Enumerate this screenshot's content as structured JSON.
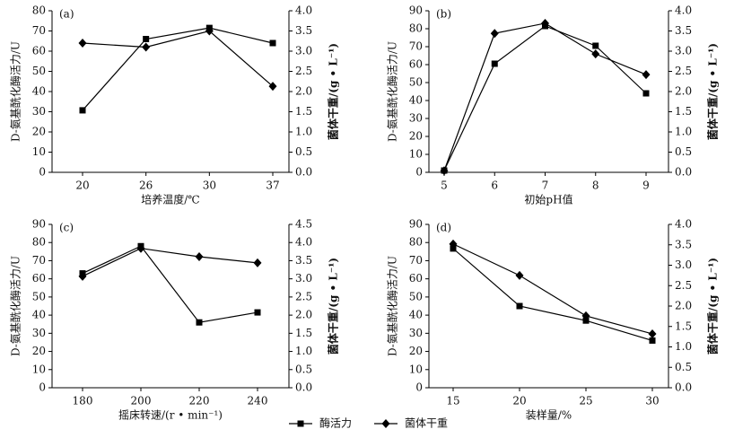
{
  "chart_data": [
    {
      "type": "line",
      "panel_label": "(a)",
      "x_label": "培养温度/℃",
      "y_label": "D-氨基酰化酶活力/U",
      "y2_label": "菌体干重/(g • L⁻¹)",
      "categories": [
        "20",
        "26",
        "30",
        "37"
      ],
      "series": [
        {
          "name": "酶活力",
          "color": "#000000",
          "marker": "square",
          "values": [
            30.7,
            66,
            71.5,
            64
          ]
        },
        {
          "name": "菌体干重",
          "color": "#000000",
          "marker": "diamond",
          "axis": "y2",
          "values": [
            3.2,
            3.1,
            3.5,
            2.13
          ]
        }
      ],
      "ylim": [
        0,
        80
      ],
      "yticks": [
        0,
        10,
        20,
        30,
        40,
        50,
        60,
        70,
        80
      ],
      "y2lim": [
        0,
        4
      ],
      "y2ticks": [
        {
          "value": 0,
          "label": "0.0"
        },
        0.5,
        {
          "value": 1,
          "label": "1.0"
        },
        1.5,
        {
          "value": 2,
          "label": "2.0"
        },
        2.5,
        {
          "value": 3,
          "label": "3.0"
        },
        3.5,
        {
          "value": 4,
          "label": "4.0"
        }
      ]
    },
    {
      "type": "line",
      "panel_label": "(b)",
      "x_label": "初始pH值",
      "y_label": "D-氨基酰化酶活力/U",
      "y2_label": "菌体干重/(g • L⁻¹)",
      "categories": [
        "5",
        "6",
        "7",
        "8",
        "9"
      ],
      "series": [
        {
          "name": "酶活力",
          "color": "#000000",
          "marker": "square",
          "values": [
            1,
            60.5,
            81.5,
            70.5,
            44
          ]
        },
        {
          "name": "菌体干重",
          "color": "#000000",
          "marker": "diamond",
          "axis": "y2",
          "values": [
            0.04,
            3.44,
            3.69,
            2.93,
            2.42
          ]
        }
      ],
      "ylim": [
        0,
        90
      ],
      "yticks": [
        0,
        10,
        20,
        30,
        40,
        50,
        60,
        70,
        80,
        90
      ],
      "y2lim": [
        0,
        4
      ],
      "y2ticks": [
        {
          "value": 0,
          "label": "0.0"
        },
        0.5,
        {
          "value": 1,
          "label": "1.0"
        },
        1.5,
        {
          "value": 2,
          "label": "2.0"
        },
        2.5,
        {
          "value": 3,
          "label": "3.0"
        },
        3.5,
        {
          "value": 4,
          "label": "4.0"
        }
      ]
    },
    {
      "type": "line",
      "panel_label": "(c)",
      "x_label": "摇床转速/(r • min⁻¹)",
      "y_label": "D-氨基酰化酶活力/U",
      "y2_label": "菌体干重/(g • L⁻¹)",
      "categories": [
        "180",
        "200",
        "220",
        "240"
      ],
      "series": [
        {
          "name": "酶活力",
          "color": "#000000",
          "marker": "square",
          "values": [
            63,
            78,
            36,
            41.5
          ]
        },
        {
          "name": "菌体干重",
          "color": "#000000",
          "marker": "diamond",
          "axis": "y2",
          "values": [
            3.07,
            3.84,
            3.61,
            3.44
          ]
        }
      ],
      "ylim": [
        0,
        90
      ],
      "yticks": [
        0,
        10,
        20,
        30,
        40,
        50,
        60,
        70,
        80,
        90
      ],
      "y2lim": [
        0,
        4.5
      ],
      "y2ticks": [
        {
          "value": 0,
          "label": "0.0"
        },
        0.5,
        {
          "value": 1,
          "label": "1.0"
        },
        1.5,
        {
          "value": 2,
          "label": "2.0"
        },
        2.5,
        {
          "value": 3,
          "label": "3.0"
        },
        3.5,
        {
          "value": 4,
          "label": "4.0"
        },
        4.5
      ]
    },
    {
      "type": "line",
      "panel_label": "(d)",
      "x_label": "装样量/%",
      "y_label": "D-氨基酰化酶活力/U",
      "y2_label": "菌体干重/(g • L⁻¹)",
      "categories": [
        "15",
        "20",
        "25",
        "30"
      ],
      "series": [
        {
          "name": "酶活力",
          "color": "#000000",
          "marker": "square",
          "values": [
            76.7,
            45,
            37,
            26
          ]
        },
        {
          "name": "菌体干重",
          "color": "#000000",
          "marker": "diamond",
          "axis": "y2",
          "values": [
            3.52,
            2.75,
            1.76,
            1.32
          ]
        }
      ],
      "ylim": [
        0,
        90
      ],
      "yticks": [
        0,
        10,
        20,
        30,
        40,
        50,
        60,
        70,
        80,
        90
      ],
      "y2lim": [
        0,
        4
      ],
      "y2ticks": [
        {
          "value": 0,
          "label": "0.0"
        },
        0.5,
        {
          "value": 1,
          "label": "1.0"
        },
        1.5,
        {
          "value": 2,
          "label": "2.0"
        },
        2.5,
        {
          "value": 3,
          "label": "3.0"
        },
        3.5,
        {
          "value": 4,
          "label": "4.0"
        }
      ]
    }
  ]
}
